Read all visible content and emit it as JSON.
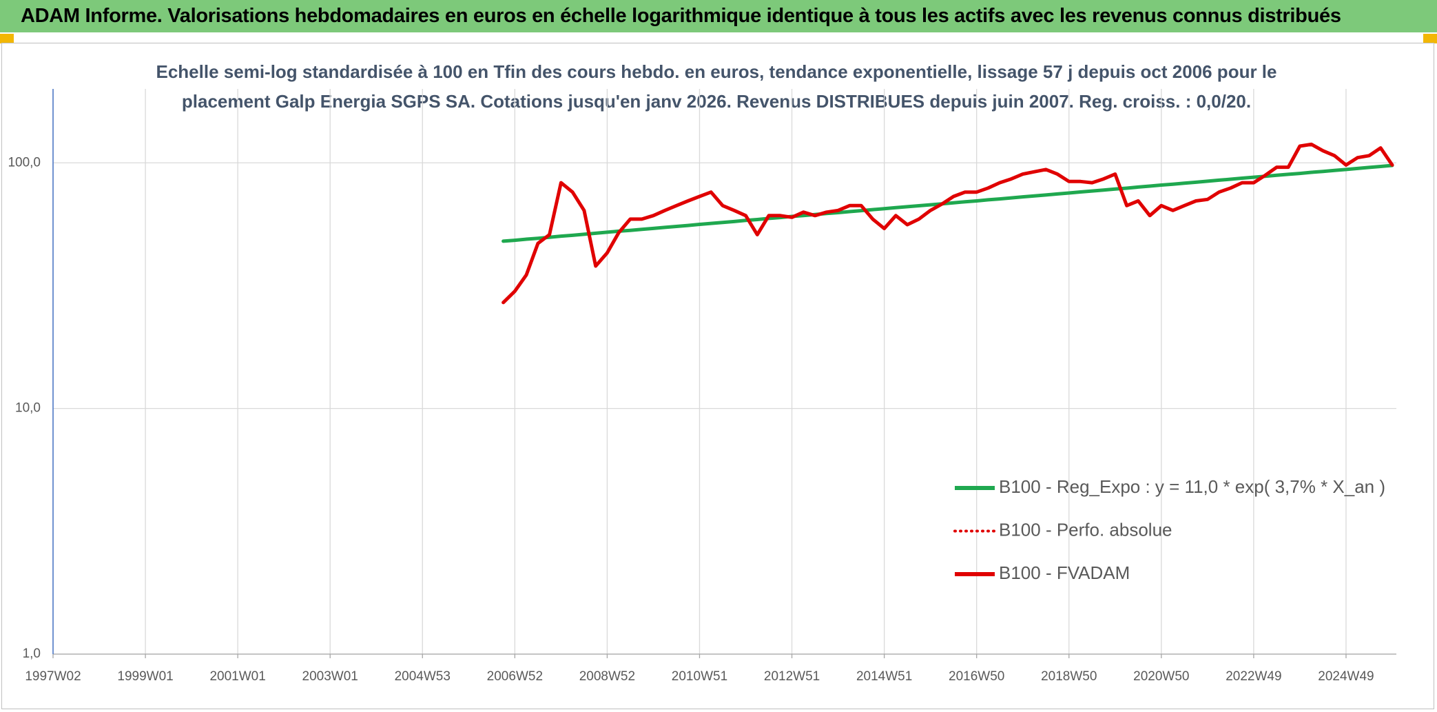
{
  "header": {
    "title": "ADAM Informe. Valorisations hebdomadaires en euros en échelle logarithmique identique à tous les actifs avec les revenus connus distribués"
  },
  "chart_data": {
    "type": "line",
    "subtitle_lines": [
      "Echelle semi-log standardisée à 100 en Tfin des cours hebdo. en euros, tendance exponentielle, lissage 57 j depuis oct 2006 pour le",
      "placement Galp Energia SGPS SA. Cotations jusqu'en janv 2026. Revenus DISTRIBUES depuis juin 2007. Reg. croiss. : 0,0/20."
    ],
    "categories": [
      "1997W02",
      null,
      null,
      null,
      null,
      null,
      null,
      null,
      "1999W01",
      null,
      null,
      null,
      null,
      null,
      null,
      null,
      "2001W01",
      null,
      null,
      null,
      null,
      null,
      null,
      null,
      "2003W01",
      null,
      null,
      null,
      null,
      null,
      null,
      null,
      "2004W53",
      null,
      null,
      null,
      null,
      null,
      null,
      null,
      "2006W52",
      null,
      null,
      null,
      null,
      null,
      null,
      null,
      "2008W52",
      null,
      null,
      null,
      null,
      null,
      null,
      null,
      "2010W51",
      null,
      null,
      null,
      null,
      null,
      null,
      null,
      "2012W51",
      null,
      null,
      null,
      null,
      null,
      null,
      null,
      "2014W51",
      null,
      null,
      null,
      null,
      null,
      null,
      null,
      "2016W50",
      null,
      null,
      null,
      null,
      null,
      null,
      null,
      "2018W50",
      null,
      null,
      null,
      null,
      null,
      null,
      null,
      "2020W50",
      null,
      null,
      null,
      null,
      null,
      null,
      null,
      "2022W49",
      null,
      null,
      null,
      null,
      null,
      null,
      null,
      "2024W49",
      null,
      null,
      null,
      null
    ],
    "log_scale": true,
    "ylim": [
      1,
      200
    ],
    "yticks": [
      {
        "value": 1,
        "label": "1,0"
      },
      {
        "value": 10,
        "label": "10,0"
      },
      {
        "value": 100,
        "label": "100,0"
      }
    ],
    "grid": true,
    "legend": "right",
    "series": [
      {
        "name": "B100 - Reg_Expo : y = 11,0 * exp( 3,7% *  X_an )",
        "color": "#1fa84f",
        "style": "solid",
        "values": [
          null,
          null,
          null,
          null,
          null,
          null,
          null,
          null,
          null,
          null,
          null,
          null,
          null,
          null,
          null,
          null,
          null,
          null,
          null,
          null,
          null,
          null,
          null,
          null,
          null,
          null,
          null,
          null,
          null,
          null,
          null,
          null,
          null,
          null,
          null,
          null,
          null,
          null,
          null,
          48.0,
          48.4,
          48.9,
          49.3,
          49.8,
          50.3,
          50.7,
          51.2,
          51.7,
          52.2,
          52.7,
          53.1,
          53.6,
          54.1,
          54.6,
          55.1,
          55.6,
          56.2,
          56.7,
          57.2,
          57.7,
          58.3,
          58.8,
          59.4,
          59.9,
          60.5,
          61.0,
          61.6,
          62.2,
          62.7,
          63.3,
          63.9,
          64.5,
          65.1,
          65.7,
          66.3,
          66.9,
          67.5,
          68.1,
          68.8,
          69.4,
          70.0,
          70.7,
          71.3,
          72.0,
          72.7,
          73.3,
          74.0,
          74.7,
          75.4,
          76.1,
          76.8,
          77.5,
          78.2,
          78.9,
          79.7,
          80.4,
          81.2,
          81.9,
          82.7,
          83.4,
          84.2,
          85.0,
          85.8,
          86.6,
          87.4,
          88.2,
          89.0,
          89.8,
          90.6,
          91.5,
          92.3,
          93.2,
          94.0,
          94.9,
          95.8,
          96.7,
          97.6
        ]
      },
      {
        "name": "B100 - Perfo. absolue",
        "color": "#e00000",
        "style": "dotted",
        "values": [
          null,
          null,
          null,
          null,
          null,
          null,
          null,
          null,
          null,
          null,
          null,
          null,
          null,
          null,
          null,
          null,
          null,
          null,
          null,
          null,
          null,
          null,
          null,
          null,
          null,
          null,
          null,
          null,
          null,
          null,
          null,
          null,
          null,
          null,
          null,
          null,
          null,
          null,
          null,
          27,
          30,
          35,
          47,
          51,
          83,
          76,
          64,
          38,
          43,
          52,
          59,
          59,
          61,
          64,
          67,
          70,
          73,
          76,
          67,
          64,
          61,
          51,
          61,
          61,
          60,
          63,
          61,
          63,
          64,
          67,
          67,
          59,
          54,
          61,
          56,
          59,
          64,
          68,
          73,
          76,
          76,
          79,
          83,
          86,
          90,
          92,
          94,
          90,
          84,
          84,
          83,
          86,
          90,
          67,
          70,
          61,
          67,
          64,
          67,
          70,
          71,
          76,
          79,
          83,
          83,
          89,
          96,
          96,
          117,
          119,
          112,
          107,
          98,
          105,
          107,
          115,
          98
        ]
      },
      {
        "name": "B100 - FVADAM",
        "color": "#e00000",
        "style": "solid",
        "values": [
          null,
          null,
          null,
          null,
          null,
          null,
          null,
          null,
          null,
          null,
          null,
          null,
          null,
          null,
          null,
          null,
          null,
          null,
          null,
          null,
          null,
          null,
          null,
          null,
          null,
          null,
          null,
          null,
          null,
          null,
          null,
          null,
          null,
          null,
          null,
          null,
          null,
          null,
          null,
          27,
          30,
          35,
          47,
          51,
          83,
          76,
          64,
          38,
          43,
          52,
          59,
          59,
          61,
          64,
          67,
          70,
          73,
          76,
          67,
          64,
          61,
          51,
          61,
          61,
          60,
          63,
          61,
          63,
          64,
          67,
          67,
          59,
          54,
          61,
          56,
          59,
          64,
          68,
          73,
          76,
          76,
          79,
          83,
          86,
          90,
          92,
          94,
          90,
          84,
          84,
          83,
          86,
          90,
          67,
          70,
          61,
          67,
          64,
          67,
          70,
          71,
          76,
          79,
          83,
          83,
          89,
          96,
          96,
          117,
          119,
          112,
          107,
          98,
          105,
          107,
          115,
          98
        ]
      }
    ]
  }
}
